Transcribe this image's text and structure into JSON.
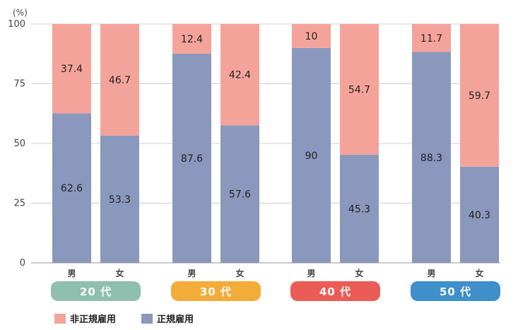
{
  "chart_data": {
    "type": "bar",
    "stacked": true,
    "unit": "(%)",
    "ylim": [
      0,
      100
    ],
    "yticks": [
      0,
      25,
      50,
      75,
      100
    ],
    "grid": true,
    "groups": [
      {
        "label": "20 代",
        "color": "#8fbfae",
        "bars": [
          {
            "category": "男",
            "regular": 62.6,
            "non_regular": 37.4
          },
          {
            "category": "女",
            "regular": 53.3,
            "non_regular": 46.7
          }
        ]
      },
      {
        "label": "30 代",
        "color": "#f3ac3a",
        "bars": [
          {
            "category": "男",
            "regular": 87.6,
            "non_regular": 12.4
          },
          {
            "category": "女",
            "regular": 57.6,
            "non_regular": 42.4
          }
        ]
      },
      {
        "label": "40 代",
        "color": "#ea5c55",
        "bars": [
          {
            "category": "男",
            "regular": 90.0,
            "non_regular": 10.0
          },
          {
            "category": "女",
            "regular": 45.3,
            "non_regular": 54.7
          }
        ]
      },
      {
        "label": "50 代",
        "color": "#3e8fca",
        "bars": [
          {
            "category": "男",
            "regular": 88.3,
            "non_regular": 11.7
          },
          {
            "category": "女",
            "regular": 40.3,
            "non_regular": 59.7
          }
        ]
      }
    ],
    "series": [
      {
        "name": "非正規雇用",
        "key": "non_regular",
        "color": "#f4a39b"
      },
      {
        "name": "正規雇用",
        "key": "regular",
        "color": "#8b98bd"
      }
    ],
    "legend_position": "bottom-left"
  }
}
